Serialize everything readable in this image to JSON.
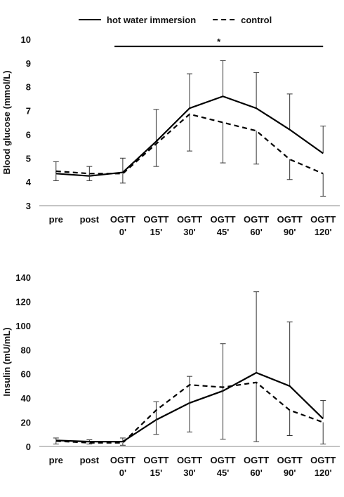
{
  "chart_data": [
    {
      "type": "line",
      "ylabel": "Blood glucose (mmol/L)",
      "categories": [
        "pre",
        "post",
        "OGTT 0'",
        "OGTT 15'",
        "OGTT 30'",
        "OGTT 45'",
        "OGTT 60'",
        "OGTT 90'",
        "OGTT 120'"
      ],
      "series": [
        {
          "name": "hot water immersion",
          "color": "#000000",
          "dash": "solid",
          "error_direction": "up",
          "values": [
            4.35,
            4.25,
            4.4,
            5.7,
            7.1,
            7.6,
            7.1,
            6.2,
            5.2
          ],
          "errors": [
            0.5,
            0.4,
            0.6,
            1.35,
            1.45,
            1.5,
            1.5,
            1.5,
            1.15
          ]
        },
        {
          "name": "control",
          "color": "#000000",
          "dash": "dashed",
          "error_direction": "down",
          "values": [
            4.45,
            4.35,
            4.35,
            5.6,
            6.85,
            6.5,
            6.15,
            4.95,
            4.35
          ],
          "errors": [
            0.4,
            0.3,
            0.4,
            0.95,
            1.55,
            1.7,
            1.4,
            0.85,
            0.95
          ]
        }
      ],
      "significance": {
        "label": "*",
        "from": 2,
        "to": 8,
        "y": 9.7
      },
      "ylim": [
        3,
        10
      ],
      "yticks": [
        3,
        4,
        5,
        6,
        7,
        8,
        9,
        10
      ],
      "grid": false,
      "legend": "top"
    },
    {
      "type": "line",
      "ylabel": "Insulin (mU/mL)",
      "categories": [
        "pre",
        "post",
        "OGTT 0'",
        "OGTT 15'",
        "OGTT 30'",
        "OGTT 45'",
        "OGTT 60'",
        "OGTT 90'",
        "OGTT 120'"
      ],
      "series": [
        {
          "color": "#000000",
          "dash": "solid",
          "error_direction": "up",
          "values": [
            5,
            4,
            4,
            22,
            36,
            46,
            61,
            50,
            23
          ],
          "errors": [
            2,
            1.5,
            3,
            15,
            22,
            39,
            67,
            53,
            15
          ]
        },
        {
          "color": "#000000",
          "dash": "dashed",
          "error_direction": "down",
          "values": [
            4.5,
            3,
            3,
            30,
            51,
            49,
            53,
            30,
            20
          ],
          "errors": [
            2.5,
            1,
            2,
            20,
            39,
            43,
            49,
            21,
            18
          ]
        }
      ],
      "ylim": [
        0,
        140
      ],
      "yticks": [
        0,
        20,
        40,
        60,
        80,
        100,
        120,
        140
      ],
      "grid": false
    }
  ]
}
